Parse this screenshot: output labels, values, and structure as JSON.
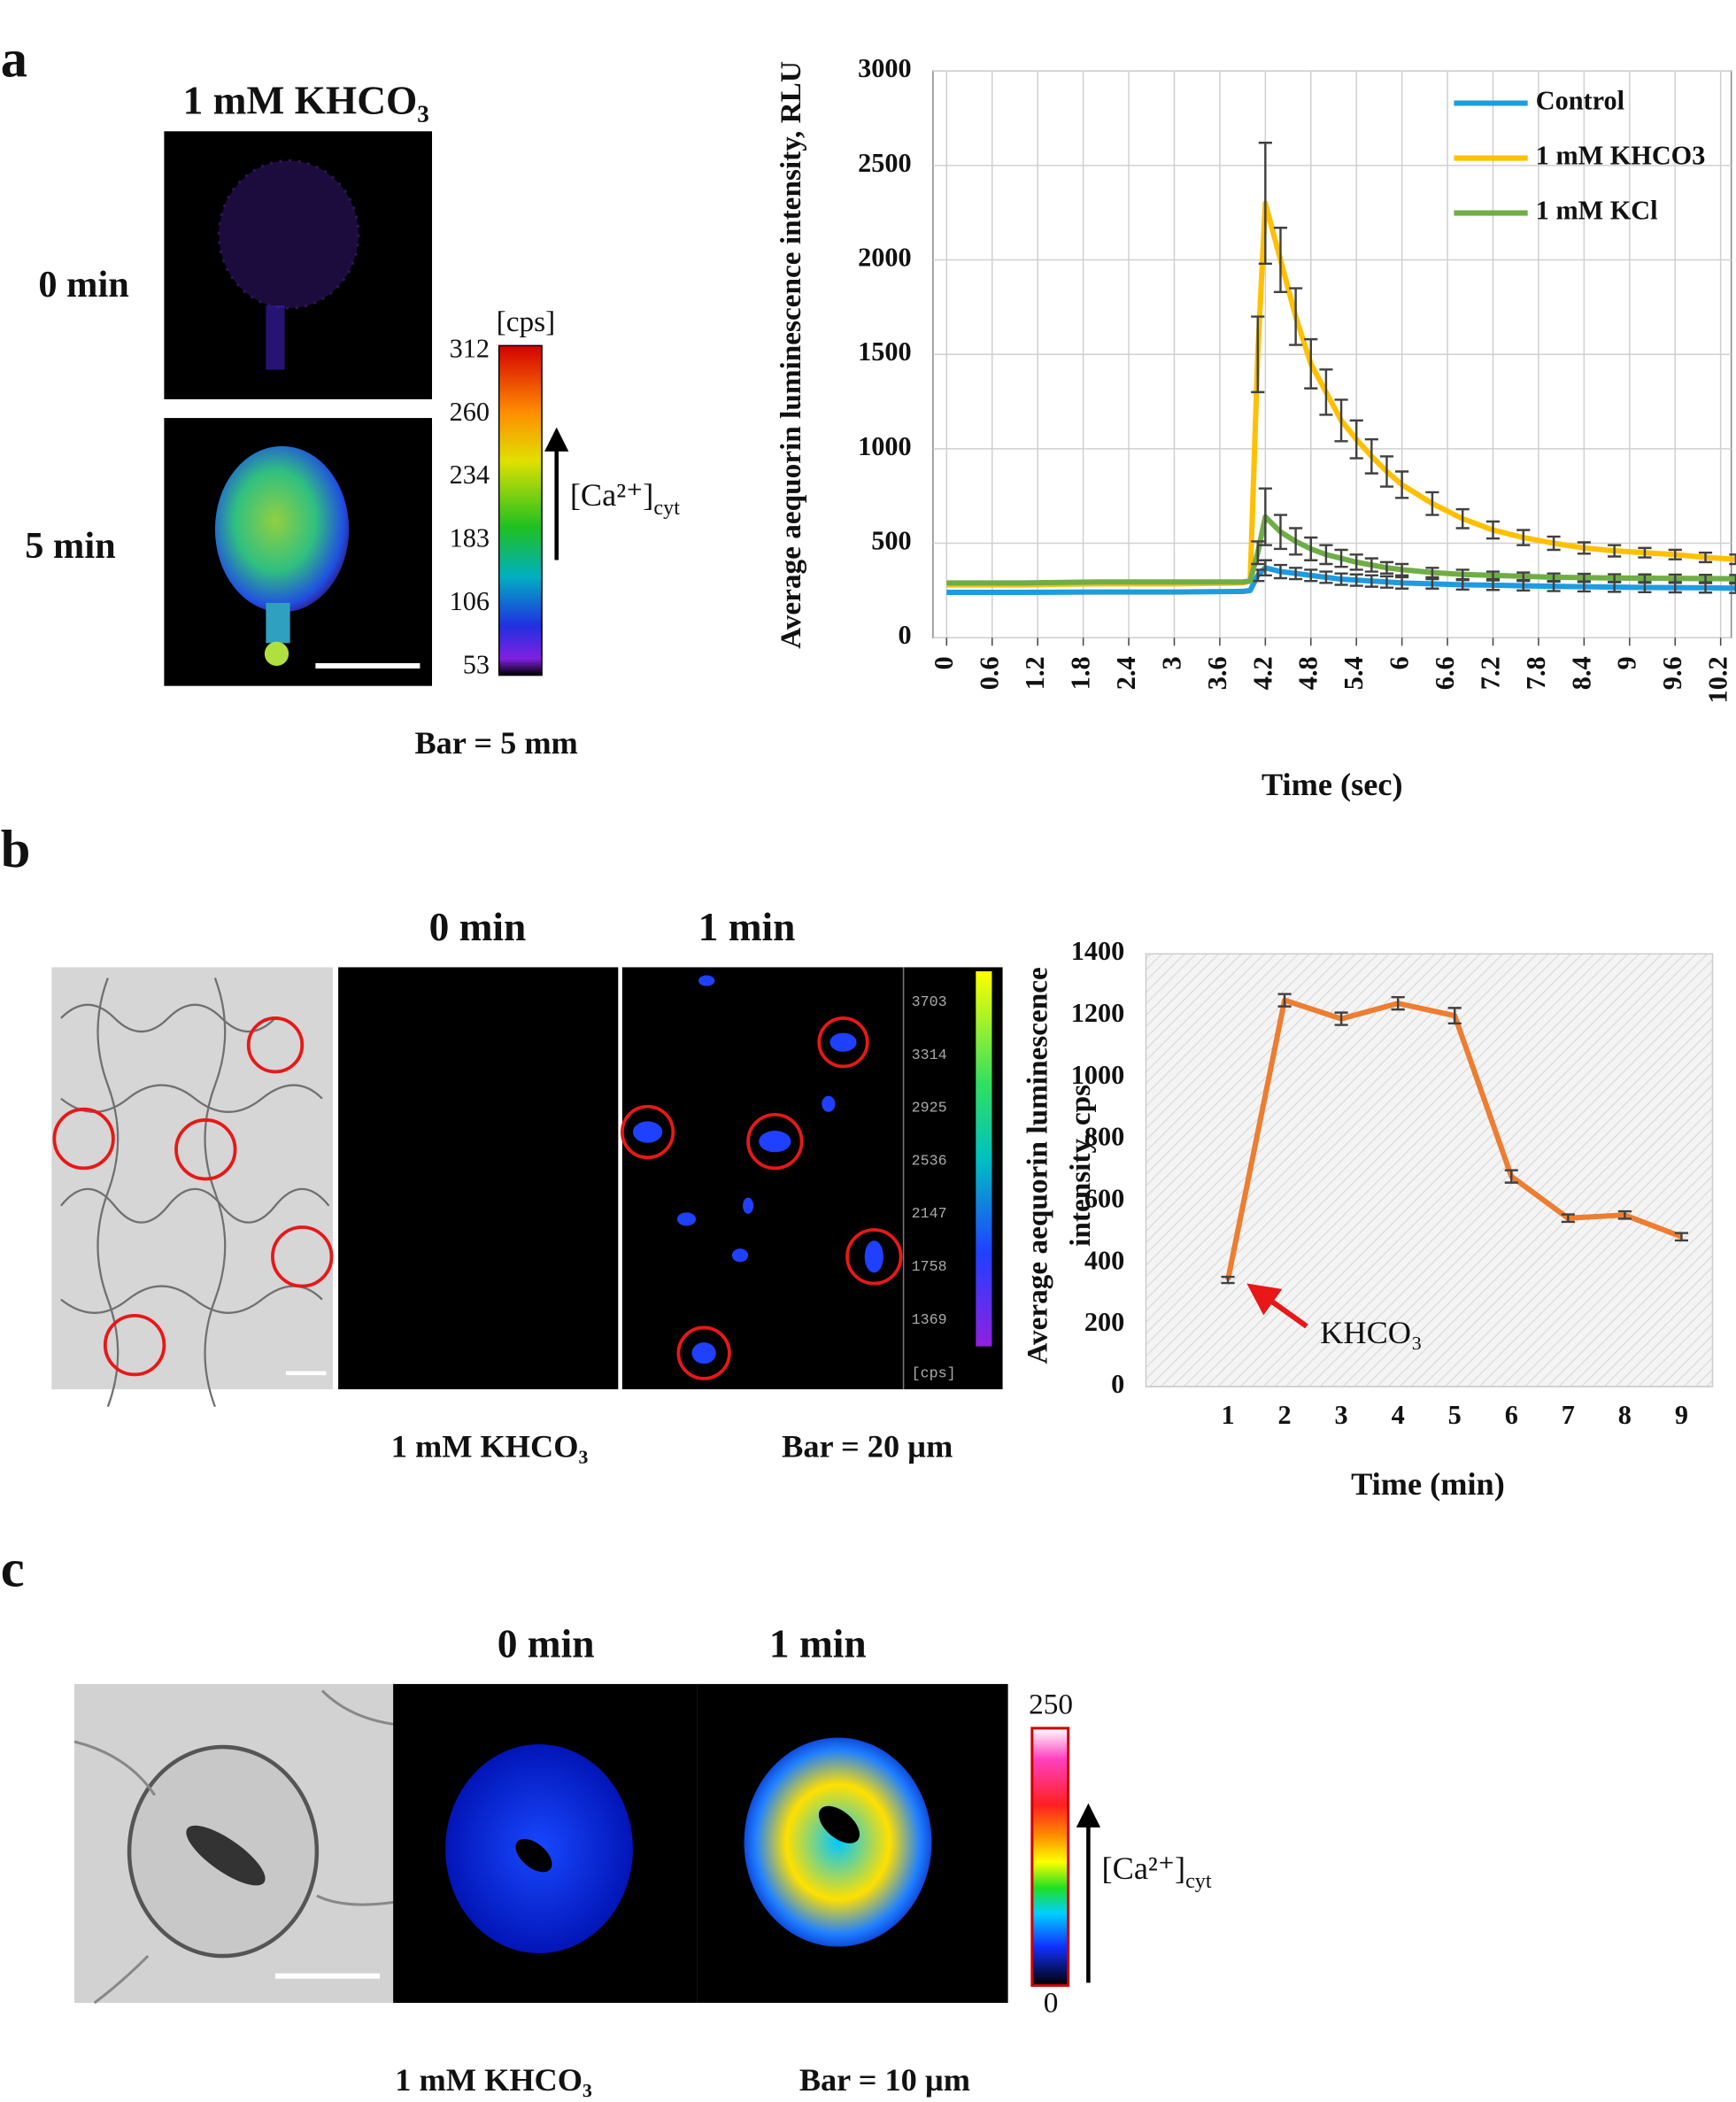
{
  "figure": {
    "panel_labels": [
      "a",
      "b",
      "c"
    ],
    "a": {
      "title": "1 mM KHCO₃",
      "rows": [
        "0 min",
        "5 min"
      ],
      "colorbar_unit": "[cps]",
      "colorbar_ticks": [
        312,
        260,
        234,
        183,
        106,
        53
      ],
      "ca_label": "[Ca²⁺]",
      "ca_sub": "cyt",
      "scale": "Bar = 5 mm"
    },
    "b": {
      "columns": [
        "0 min",
        "1 min"
      ],
      "treatment": "1 mM KHCO₃",
      "scale": "Bar = 20 µm",
      "colorbar_ticks": [
        3703,
        3314,
        2925,
        2536,
        2147,
        1758,
        1369
      ],
      "colorbar_unit": "[cps]"
    },
    "c": {
      "columns": [
        "0 min",
        "1 min"
      ],
      "treatment": "1 mM KHCO₃",
      "scale": "Bar = 10 µm",
      "colorbar_ticks": [
        250,
        0
      ],
      "ca_label": "[Ca²⁺]",
      "ca_sub": "cyt"
    }
  },
  "chart_data": [
    {
      "type": "line",
      "ylabel": "Average aequorin luminescence intensity, RLU",
      "xlabel": "Time (sec)",
      "x": [
        0,
        1,
        2,
        3,
        3.9,
        4.0,
        4.1,
        4.2,
        4.4,
        4.6,
        4.8,
        5.0,
        5.2,
        5.4,
        5.6,
        5.8,
        6.0,
        6.4,
        6.8,
        7.2,
        7.6,
        8.0,
        8.4,
        8.8,
        9.2,
        9.6,
        10.0,
        10.4
      ],
      "xlim": [
        -0.18,
        10.34
      ],
      "xticks": [
        0,
        0.6,
        1.2,
        1.8,
        2.4,
        3,
        3.6,
        4.2,
        4.8,
        5.4,
        6,
        6.6,
        7.2,
        7.8,
        8.4,
        9,
        9.6,
        10.2
      ],
      "ylim": [
        0,
        3000
      ],
      "yticks": [
        0,
        500,
        1000,
        1500,
        2000,
        2500,
        3000
      ],
      "grid": true,
      "legend": "upper right",
      "series": [
        {
          "name": "Control",
          "color": "#1f9be0",
          "values": [
            240,
            240,
            242,
            242,
            245,
            250,
            330,
            370,
            350,
            340,
            330,
            320,
            310,
            305,
            300,
            295,
            290,
            285,
            280,
            278,
            275,
            272,
            270,
            268,
            266,
            265,
            264,
            262
          ],
          "errors": [
            null,
            null,
            null,
            null,
            null,
            null,
            30,
            40,
            35,
            30,
            30,
            30,
            30,
            30,
            30,
            30,
            30,
            25,
            25,
            25,
            25,
            25,
            25,
            25,
            25,
            25,
            25,
            25
          ]
        },
        {
          "name": "1 mM KHCO3",
          "color": "#ffc000",
          "values": [
            280,
            280,
            285,
            285,
            290,
            300,
            1500,
            2300,
            2000,
            1700,
            1450,
            1300,
            1150,
            1050,
            960,
            880,
            810,
            710,
            630,
            570,
            530,
            500,
            475,
            460,
            450,
            440,
            425,
            415
          ],
          "errors": [
            null,
            null,
            null,
            null,
            null,
            null,
            200,
            320,
            170,
            150,
            130,
            120,
            110,
            100,
            90,
            80,
            70,
            60,
            50,
            45,
            40,
            35,
            30,
            30,
            25,
            25,
            25,
            25
          ]
        },
        {
          "name": "1 mM KCl",
          "color": "#70ad47",
          "values": [
            290,
            290,
            295,
            295,
            295,
            300,
            450,
            640,
            560,
            510,
            470,
            440,
            420,
            400,
            385,
            370,
            360,
            345,
            335,
            330,
            325,
            320,
            318,
            316,
            315,
            314,
            313,
            312
          ],
          "errors": [
            null,
            null,
            null,
            null,
            null,
            null,
            60,
            150,
            90,
            70,
            60,
            50,
            45,
            40,
            35,
            30,
            30,
            25,
            25,
            20,
            20,
            20,
            20,
            20,
            20,
            20,
            20,
            20
          ]
        }
      ]
    },
    {
      "type": "line",
      "ylabel": [
        "Average aequorin luminescence",
        "intensity, cps"
      ],
      "xlabel": "Time (min)",
      "categories": [
        "1",
        "2",
        "3",
        "4",
        "5",
        "6",
        "7",
        "8",
        "9"
      ],
      "ylim": [
        0,
        1400
      ],
      "yticks": [
        0,
        200,
        400,
        600,
        800,
        1000,
        1200,
        1400
      ],
      "grid": false,
      "annotation": "KHCO₃",
      "series": [
        {
          "color": "#ed7d31",
          "values": [
            345,
            1250,
            1190,
            1240,
            1200,
            680,
            545,
            555,
            485
          ],
          "errors": [
            10,
            20,
            20,
            20,
            25,
            20,
            12,
            12,
            12
          ]
        }
      ]
    }
  ]
}
